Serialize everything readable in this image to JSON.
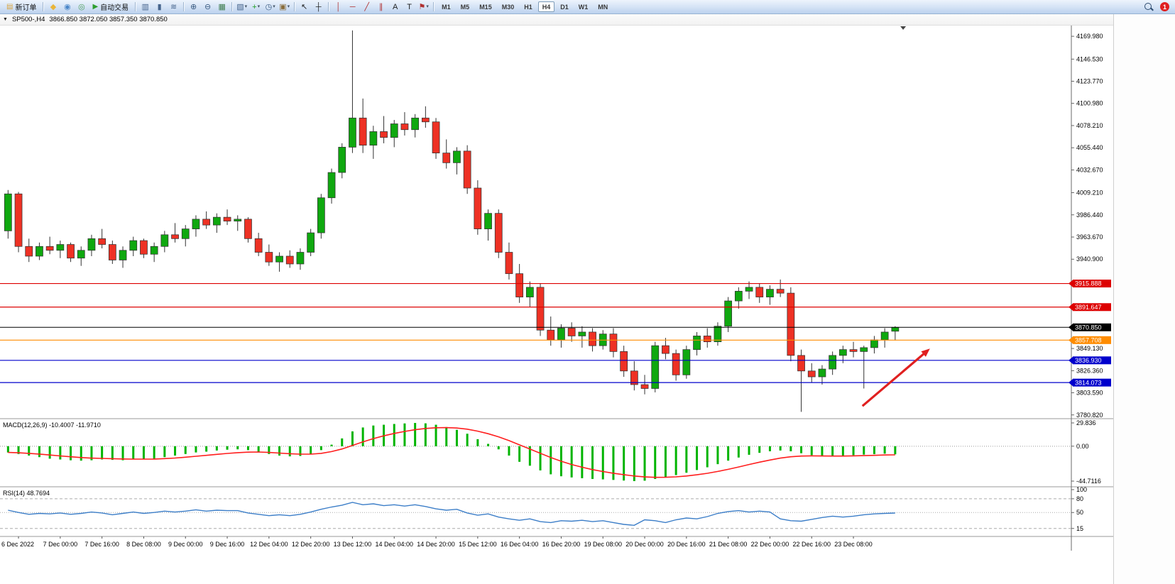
{
  "toolbar": {
    "items": [
      {
        "t": "btn",
        "name": "new-order-button",
        "glyph": "▤",
        "glyph_color": "#d9a441",
        "label": "新订单"
      },
      {
        "t": "sep"
      },
      {
        "t": "icon",
        "name": "market-watch-icon",
        "glyph": "◆",
        "glyph_color": "#e9b53a"
      },
      {
        "t": "icon",
        "name": "profiles-icon",
        "glyph": "◉",
        "glyph_color": "#4a86c8"
      },
      {
        "t": "icon",
        "name": "community-icon",
        "glyph": "◎",
        "glyph_color": "#4f9e5a"
      },
      {
        "t": "btn",
        "name": "autotrading-button",
        "glyph": "▶",
        "glyph_color": "#2f9e2f",
        "label": "自动交易"
      },
      {
        "t": "sep"
      },
      {
        "t": "icon",
        "name": "bar-chart-icon",
        "glyph": "▥",
        "glyph_color": "#46648c"
      },
      {
        "t": "icon",
        "name": "candlestick-chart-icon",
        "glyph": "▮",
        "glyph_color": "#46648c"
      },
      {
        "t": "icon",
        "name": "line-chart-icon",
        "glyph": "≋",
        "glyph_color": "#46648c"
      },
      {
        "t": "sep"
      },
      {
        "t": "icon",
        "name": "zoom-in-icon",
        "glyph": "⊕",
        "glyph_color": "#3a5a80"
      },
      {
        "t": "icon",
        "name": "zoom-out-icon",
        "glyph": "⊖",
        "glyph_color": "#3a5a80"
      },
      {
        "t": "icon",
        "name": "tile-windows-icon",
        "glyph": "▦",
        "glyph_color": "#3f7d4f"
      },
      {
        "t": "sep"
      },
      {
        "t": "dicon",
        "name": "new-chart-icon",
        "glyph": "▧",
        "glyph_color": "#46648c"
      },
      {
        "t": "dicon",
        "name": "indicators-icon",
        "glyph": "+",
        "glyph_color": "#1f9e1f"
      },
      {
        "t": "dicon",
        "name": "period-icon",
        "glyph": "◷",
        "glyph_color": "#3a5a80"
      },
      {
        "t": "dicon",
        "name": "templates-icon",
        "glyph": "▣",
        "glyph_color": "#8a6d3b"
      },
      {
        "t": "sep"
      },
      {
        "t": "icon",
        "name": "cursor-icon",
        "glyph": "↖",
        "glyph_color": "#222222"
      },
      {
        "t": "icon",
        "name": "crosshair-icon",
        "glyph": "┼",
        "glyph_color": "#222222"
      },
      {
        "t": "sep"
      },
      {
        "t": "icon",
        "name": "vertical-line-icon",
        "glyph": "│",
        "glyph_color": "#b03030"
      },
      {
        "t": "icon",
        "name": "horizontal-line-icon",
        "glyph": "─",
        "glyph_color": "#b03030"
      },
      {
        "t": "icon",
        "name": "trendline-icon",
        "glyph": "╱",
        "glyph_color": "#b03030"
      },
      {
        "t": "icon",
        "name": "equidistant-channel-icon",
        "glyph": "∥",
        "glyph_color": "#b03030"
      },
      {
        "t": "icon",
        "name": "text-icon",
        "glyph": "A",
        "glyph_color": "#222222"
      },
      {
        "t": "icon",
        "name": "label-icon",
        "glyph": "T",
        "glyph_color": "#222222"
      },
      {
        "t": "dicon",
        "name": "shapes-icon",
        "glyph": "⚑",
        "glyph_color": "#b03030"
      },
      {
        "t": "sep"
      },
      {
        "t": "tf"
      },
      {
        "t": "spring"
      },
      {
        "t": "search",
        "name": "search-icon"
      },
      {
        "t": "badge",
        "name": "notifications-badge",
        "text": "1",
        "color": "#e02020"
      }
    ],
    "timeframes": [
      "M1",
      "M5",
      "M15",
      "M30",
      "H1",
      "H4",
      "D1",
      "W1",
      "MN"
    ],
    "active_timeframe": "H4"
  },
  "chart": {
    "symbol_timeframe": "SP500-,H4",
    "ohlc_text": "3866.850 3872.050 3857.350 3870.850"
  },
  "chart_data": {
    "type": "candlestick",
    "symbol": "SP500-",
    "period": "H4",
    "last_open": 3866.85,
    "last_high": 3872.05,
    "last_low": 3857.35,
    "last_close": 3870.85,
    "price_range": [
      3777,
      4181
    ],
    "price_axis_ticks": [
      "4169.980",
      "4146.530",
      "4123.770",
      "4100.980",
      "4078.210",
      "4055.440",
      "4032.670",
      "4009.210",
      "3986.440",
      "3963.670",
      "3940.900",
      "3849.130",
      "3826.360",
      "3803.590",
      "3780.820"
    ],
    "time_labels": [
      "6 Dec 2022",
      "7 Dec 00:00",
      "7 Dec 16:00",
      "8 Dec 08:00",
      "9 Dec 00:00",
      "9 Dec 16:00",
      "12 Dec 04:00",
      "12 Dec 20:00",
      "13 Dec 12:00",
      "14 Dec 04:00",
      "14 Dec 20:00",
      "15 Dec 12:00",
      "16 Dec 04:00",
      "16 Dec 20:00",
      "19 Dec 08:00",
      "20 Dec 00:00",
      "20 Dec 16:00",
      "21 Dec 08:00",
      "22 Dec 00:00",
      "22 Dec 16:00",
      "23 Dec 08:00"
    ],
    "label_start_bar": 1,
    "label_step": 4,
    "bull_color": "#0fa80f",
    "bear_color": "#ee3124",
    "outline_color": "#333333",
    "candles": [
      [
        3970,
        4012,
        3962,
        4008
      ],
      [
        4008,
        4010,
        3948,
        3954
      ],
      [
        3954,
        3962,
        3938,
        3944
      ],
      [
        3944,
        3958,
        3940,
        3954
      ],
      [
        3954,
        3964,
        3946,
        3950
      ],
      [
        3950,
        3960,
        3942,
        3956
      ],
      [
        3956,
        3958,
        3938,
        3942
      ],
      [
        3942,
        3954,
        3934,
        3950
      ],
      [
        3950,
        3966,
        3944,
        3962
      ],
      [
        3962,
        3972,
        3952,
        3956
      ],
      [
        3956,
        3960,
        3936,
        3940
      ],
      [
        3940,
        3954,
        3932,
        3950
      ],
      [
        3950,
        3964,
        3944,
        3960
      ],
      [
        3960,
        3962,
        3942,
        3946
      ],
      [
        3946,
        3958,
        3938,
        3954
      ],
      [
        3954,
        3970,
        3948,
        3966
      ],
      [
        3966,
        3978,
        3958,
        3962
      ],
      [
        3962,
        3976,
        3954,
        3972
      ],
      [
        3972,
        3986,
        3964,
        3982
      ],
      [
        3982,
        3990,
        3972,
        3976
      ],
      [
        3976,
        3988,
        3968,
        3984
      ],
      [
        3984,
        3992,
        3976,
        3980
      ],
      [
        3980,
        3986,
        3970,
        3982
      ],
      [
        3982,
        3984,
        3958,
        3962
      ],
      [
        3962,
        3968,
        3944,
        3948
      ],
      [
        3948,
        3956,
        3934,
        3938
      ],
      [
        3938,
        3948,
        3928,
        3944
      ],
      [
        3944,
        3950,
        3932,
        3936
      ],
      [
        3936,
        3952,
        3930,
        3948
      ],
      [
        3948,
        3972,
        3944,
        3968
      ],
      [
        3968,
        4008,
        3962,
        4004
      ],
      [
        4004,
        4034,
        3998,
        4030
      ],
      [
        4030,
        4060,
        4024,
        4056
      ],
      [
        4056,
        4176,
        4050,
        4086
      ],
      [
        4086,
        4106,
        4050,
        4058
      ],
      [
        4058,
        4078,
        4044,
        4072
      ],
      [
        4072,
        4088,
        4060,
        4066
      ],
      [
        4066,
        4084,
        4056,
        4080
      ],
      [
        4080,
        4092,
        4068,
        4074
      ],
      [
        4074,
        4090,
        4066,
        4086
      ],
      [
        4086,
        4098,
        4076,
        4082
      ],
      [
        4082,
        4086,
        4044,
        4050
      ],
      [
        4050,
        4064,
        4034,
        4040
      ],
      [
        4040,
        4056,
        4028,
        4052
      ],
      [
        4052,
        4058,
        4008,
        4014
      ],
      [
        4014,
        4022,
        3966,
        3972
      ],
      [
        3972,
        3992,
        3960,
        3988
      ],
      [
        3988,
        3992,
        3942,
        3948
      ],
      [
        3948,
        3958,
        3920,
        3926
      ],
      [
        3926,
        3936,
        3896,
        3902
      ],
      [
        3902,
        3918,
        3892,
        3912
      ],
      [
        3912,
        3916,
        3862,
        3868
      ],
      [
        3868,
        3882,
        3852,
        3858
      ],
      [
        3858,
        3874,
        3850,
        3870
      ],
      [
        3870,
        3876,
        3856,
        3862
      ],
      [
        3862,
        3872,
        3850,
        3866
      ],
      [
        3866,
        3870,
        3846,
        3852
      ],
      [
        3852,
        3868,
        3848,
        3864
      ],
      [
        3864,
        3870,
        3840,
        3846
      ],
      [
        3846,
        3852,
        3820,
        3826
      ],
      [
        3826,
        3836,
        3806,
        3812
      ],
      [
        3812,
        3822,
        3802,
        3808
      ],
      [
        3808,
        3856,
        3804,
        3852
      ],
      [
        3852,
        3860,
        3838,
        3844
      ],
      [
        3844,
        3848,
        3816,
        3822
      ],
      [
        3822,
        3852,
        3818,
        3848
      ],
      [
        3848,
        3866,
        3842,
        3862
      ],
      [
        3862,
        3870,
        3850,
        3856
      ],
      [
        3856,
        3876,
        3852,
        3872
      ],
      [
        3872,
        3902,
        3866,
        3898
      ],
      [
        3898,
        3912,
        3890,
        3908
      ],
      [
        3908,
        3918,
        3900,
        3912
      ],
      [
        3912,
        3916,
        3896,
        3902
      ],
      [
        3902,
        3914,
        3894,
        3910
      ],
      [
        3910,
        3920,
        3902,
        3906
      ],
      [
        3906,
        3912,
        3836,
        3842
      ],
      [
        3842,
        3848,
        3784,
        3826
      ],
      [
        3826,
        3834,
        3814,
        3820
      ],
      [
        3820,
        3832,
        3812,
        3828
      ],
      [
        3828,
        3846,
        3822,
        3842
      ],
      [
        3842,
        3852,
        3834,
        3848
      ],
      [
        3848,
        3856,
        3840,
        3846
      ],
      [
        3846,
        3852,
        3808,
        3850
      ],
      [
        3850,
        3862,
        3844,
        3858
      ],
      [
        3858,
        3870,
        3850,
        3866
      ],
      [
        3866.85,
        3872.05,
        3857.35,
        3870.85
      ]
    ],
    "hlines": [
      {
        "price": 3915.888,
        "label": "3915.888",
        "color": "#dd0000"
      },
      {
        "price": 3891.647,
        "label": "3891.647",
        "color": "#dd0000"
      },
      {
        "price": 3870.85,
        "label": "3870.850",
        "color": "#000000"
      },
      {
        "price": 3857.708,
        "label": "3857.708",
        "color": "#ff8c00"
      },
      {
        "price": 3836.93,
        "label": "3836.930",
        "color": "#0000cc"
      },
      {
        "price": 3814.073,
        "label": "3814.073",
        "color": "#0000cc"
      }
    ],
    "arrow_annotation": {
      "x1_frac": 0.805,
      "price1": 3790,
      "x2_frac": 0.868,
      "price2": 3849,
      "color": "#e02020"
    },
    "shift_marker_frac": 0.843,
    "macd": {
      "title": "MACD(12,26,9) -10.4007 -11.9710",
      "main_value": -10.4007,
      "signal_value": -11.971,
      "range": [
        -44.7116,
        29.836
      ],
      "axis_ticks": [
        "29.836",
        "0.00",
        "-44.7116"
      ],
      "hist_color": "#00b400",
      "signal_color": "#ff1e1e",
      "histogram": [
        -8,
        -10,
        -12,
        -14,
        -16,
        -17,
        -18,
        -18.5,
        -18,
        -17,
        -17.5,
        -18,
        -17,
        -16.5,
        -16,
        -14,
        -12,
        -10,
        -8,
        -7,
        -5.5,
        -4.5,
        -4,
        -5,
        -7,
        -10,
        -12,
        -13,
        -12.5,
        -10,
        -5,
        2,
        10,
        19,
        24,
        26.5,
        27.5,
        28.5,
        29.2,
        29.8,
        29.3,
        27.5,
        24.5,
        21,
        16,
        9,
        3,
        -4,
        -12,
        -20,
        -25,
        -31,
        -36,
        -38.5,
        -40,
        -41,
        -42,
        -42.5,
        -43.2,
        -44,
        -44.7,
        -44.2,
        -42,
        -39.5,
        -37,
        -34,
        -30.5,
        -27,
        -23,
        -18.5,
        -14.5,
        -11,
        -8.5,
        -6.5,
        -5.5,
        -6.5,
        -9,
        -11.5,
        -13,
        -13.2,
        -12.5,
        -11.5,
        -10.8,
        -10.2,
        -9.6,
        -10.4
      ]
    },
    "rsi": {
      "title": "RSI(14) 48.7694",
      "value": 48.7694,
      "range": [
        10,
        100
      ],
      "axis_ticks": [
        "100",
        "80",
        "50",
        "15"
      ],
      "levels": [
        80,
        50,
        15
      ],
      "line_color": "#3c7ec8",
      "values": [
        55,
        50,
        46,
        48,
        47,
        49,
        46,
        48,
        51,
        49,
        45,
        48,
        51,
        48,
        50,
        53,
        51,
        53,
        56,
        53,
        55,
        54,
        54,
        49,
        46,
        43,
        45,
        43,
        46,
        51,
        57,
        62,
        66,
        72,
        67,
        69,
        65,
        67,
        64,
        67,
        63,
        58,
        55,
        57,
        49,
        44,
        47,
        40,
        36,
        33,
        36,
        30,
        28,
        32,
        31,
        33,
        30,
        32,
        28,
        24,
        22,
        34,
        32,
        28,
        34,
        38,
        36,
        41,
        48,
        52,
        54,
        51,
        53,
        51,
        36,
        32,
        31,
        35,
        39,
        42,
        40,
        42,
        45,
        47,
        48,
        48.77
      ]
    }
  }
}
